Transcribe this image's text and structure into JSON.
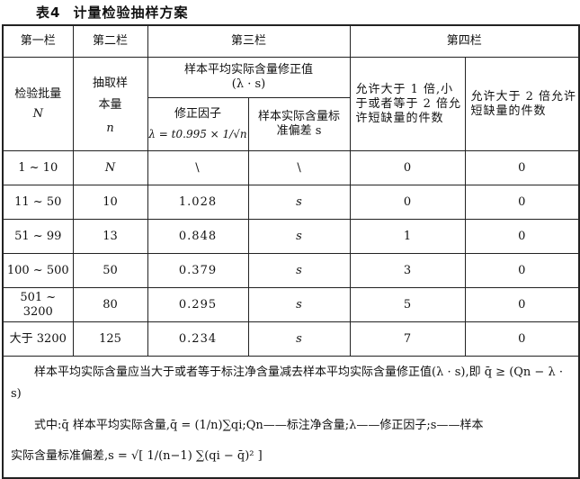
{
  "title": {
    "label": "表4",
    "text": "计量检验抽样方案"
  },
  "header": {
    "col1": "第一栏",
    "col2": "第二栏",
    "col3": "第三栏",
    "col4": "第四栏",
    "lot": "检验批量",
    "lot_sym": "N",
    "sample": "抽取样本量",
    "sample_sym": "n",
    "correction": "样本平均实际含量修正值",
    "correction_sym": "(λ · s)",
    "factor": "修正因子",
    "factor_formula": "λ = t0.995 × 1/√n",
    "stddev": "样本实际含量标准偏差 s",
    "allow1": "允许大于 1 倍,小于或者等于 2 倍允许短缺量的件数",
    "allow2": "允许大于 2 倍允许短缺量的件数"
  },
  "rows": [
    [
      "1 ~ 10",
      "N",
      "\\",
      "\\",
      "0",
      "0"
    ],
    [
      "11 ~ 50",
      "10",
      "1.028",
      "s",
      "0",
      "0"
    ],
    [
      "51 ~ 99",
      "13",
      "0.848",
      "s",
      "1",
      "0"
    ],
    [
      "100 ~ 500",
      "50",
      "0.379",
      "s",
      "3",
      "0"
    ],
    [
      "501 ~ 3200",
      "80",
      "0.295",
      "s",
      "5",
      "0"
    ],
    [
      "大于 3200",
      "125",
      "0.234",
      "s",
      "7",
      "0"
    ]
  ],
  "notes": {
    "line1": "样本平均实际含量应当大于或者等于标注净含量减去样本平均实际含量修正值(λ · s),即 q̄ ≥ (Qn − λ · s)",
    "line2": "式中:q̄ 样本平均实际含量,q̄ = (1/n)∑qi;Qn——标注净含量;λ——修正因子;s——样本",
    "line3": "实际含量标准偏差,s = √[ 1/(n−1) ∑(qi − q̄)² ]"
  }
}
